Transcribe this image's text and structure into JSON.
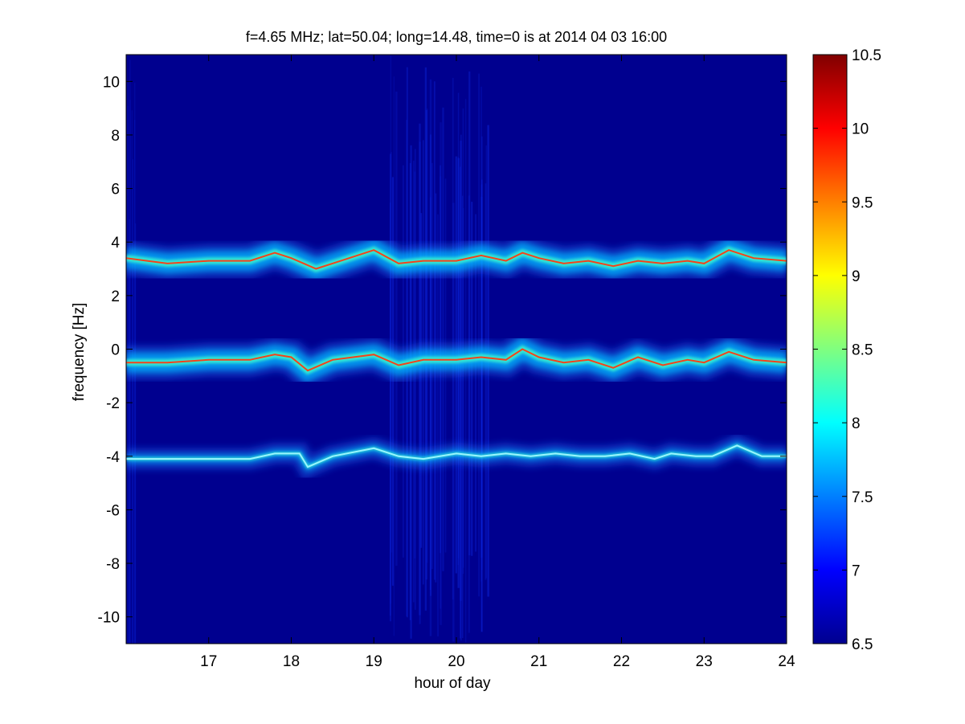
{
  "chart_data": {
    "type": "heatmap",
    "title": "f=4.65 MHz;  lat=50.04; long=14.48, time=0 is at 2014 04 03 16:00",
    "xlabel": "hour of day",
    "ylabel": "frequency [Hz]",
    "xlim": [
      16,
      24
    ],
    "ylim": [
      -11,
      11
    ],
    "xticks": [
      "17",
      "18",
      "19",
      "20",
      "21",
      "22",
      "23",
      "24"
    ],
    "yticks": [
      "-10",
      "-8",
      "-6",
      "-4",
      "-2",
      "0",
      "2",
      "4",
      "6",
      "8",
      "10"
    ],
    "colorbar": {
      "range": [
        6.5,
        10.5
      ],
      "ticks": [
        "6.5",
        "7",
        "7.5",
        "8",
        "8.5",
        "9",
        "9.5",
        "10",
        "10.5"
      ],
      "colormap": "jet"
    },
    "background_color": "#00008F",
    "bands": [
      {
        "center_hz": 3.4,
        "description": "upper trace",
        "profile": [
          [
            16.0,
            3.4
          ],
          [
            16.5,
            3.2
          ],
          [
            17.0,
            3.3
          ],
          [
            17.5,
            3.3
          ],
          [
            17.8,
            3.6
          ],
          [
            18.0,
            3.4
          ],
          [
            18.3,
            3.0
          ],
          [
            18.6,
            3.3
          ],
          [
            19.0,
            3.7
          ],
          [
            19.3,
            3.2
          ],
          [
            19.6,
            3.3
          ],
          [
            20.0,
            3.3
          ],
          [
            20.3,
            3.5
          ],
          [
            20.6,
            3.3
          ],
          [
            20.8,
            3.6
          ],
          [
            21.0,
            3.4
          ],
          [
            21.3,
            3.2
          ],
          [
            21.6,
            3.3
          ],
          [
            21.9,
            3.1
          ],
          [
            22.2,
            3.3
          ],
          [
            22.5,
            3.2
          ],
          [
            22.8,
            3.3
          ],
          [
            23.0,
            3.2
          ],
          [
            23.3,
            3.7
          ],
          [
            23.6,
            3.4
          ],
          [
            24.0,
            3.3
          ]
        ]
      },
      {
        "center_hz": -0.4,
        "description": "middle trace",
        "profile": [
          [
            16.0,
            -0.5
          ],
          [
            16.5,
            -0.5
          ],
          [
            17.0,
            -0.4
          ],
          [
            17.5,
            -0.4
          ],
          [
            17.8,
            -0.2
          ],
          [
            18.0,
            -0.3
          ],
          [
            18.2,
            -0.8
          ],
          [
            18.5,
            -0.4
          ],
          [
            19.0,
            -0.2
          ],
          [
            19.3,
            -0.6
          ],
          [
            19.6,
            -0.4
          ],
          [
            20.0,
            -0.4
          ],
          [
            20.3,
            -0.3
          ],
          [
            20.6,
            -0.4
          ],
          [
            20.8,
            0.0
          ],
          [
            21.0,
            -0.3
          ],
          [
            21.3,
            -0.5
          ],
          [
            21.6,
            -0.4
          ],
          [
            21.9,
            -0.7
          ],
          [
            22.2,
            -0.3
          ],
          [
            22.5,
            -0.6
          ],
          [
            22.8,
            -0.4
          ],
          [
            23.0,
            -0.5
          ],
          [
            23.3,
            -0.1
          ],
          [
            23.6,
            -0.4
          ],
          [
            24.0,
            -0.5
          ]
        ]
      },
      {
        "center_hz": -4.0,
        "description": "lower trace",
        "profile": [
          [
            16.0,
            -4.1
          ],
          [
            16.5,
            -4.1
          ],
          [
            17.0,
            -4.1
          ],
          [
            17.5,
            -4.1
          ],
          [
            17.8,
            -3.9
          ],
          [
            18.1,
            -3.9
          ],
          [
            18.2,
            -4.4
          ],
          [
            18.5,
            -4.0
          ],
          [
            19.0,
            -3.7
          ],
          [
            19.3,
            -4.0
          ],
          [
            19.6,
            -4.1
          ],
          [
            20.0,
            -3.9
          ],
          [
            20.3,
            -4.0
          ],
          [
            20.6,
            -3.9
          ],
          [
            20.9,
            -4.0
          ],
          [
            21.2,
            -3.9
          ],
          [
            21.5,
            -4.0
          ],
          [
            21.8,
            -4.0
          ],
          [
            22.1,
            -3.9
          ],
          [
            22.4,
            -4.1
          ],
          [
            22.6,
            -3.9
          ],
          [
            22.9,
            -4.0
          ],
          [
            23.1,
            -4.0
          ],
          [
            23.4,
            -3.6
          ],
          [
            23.7,
            -4.0
          ],
          [
            24.0,
            -4.0
          ]
        ]
      }
    ]
  }
}
